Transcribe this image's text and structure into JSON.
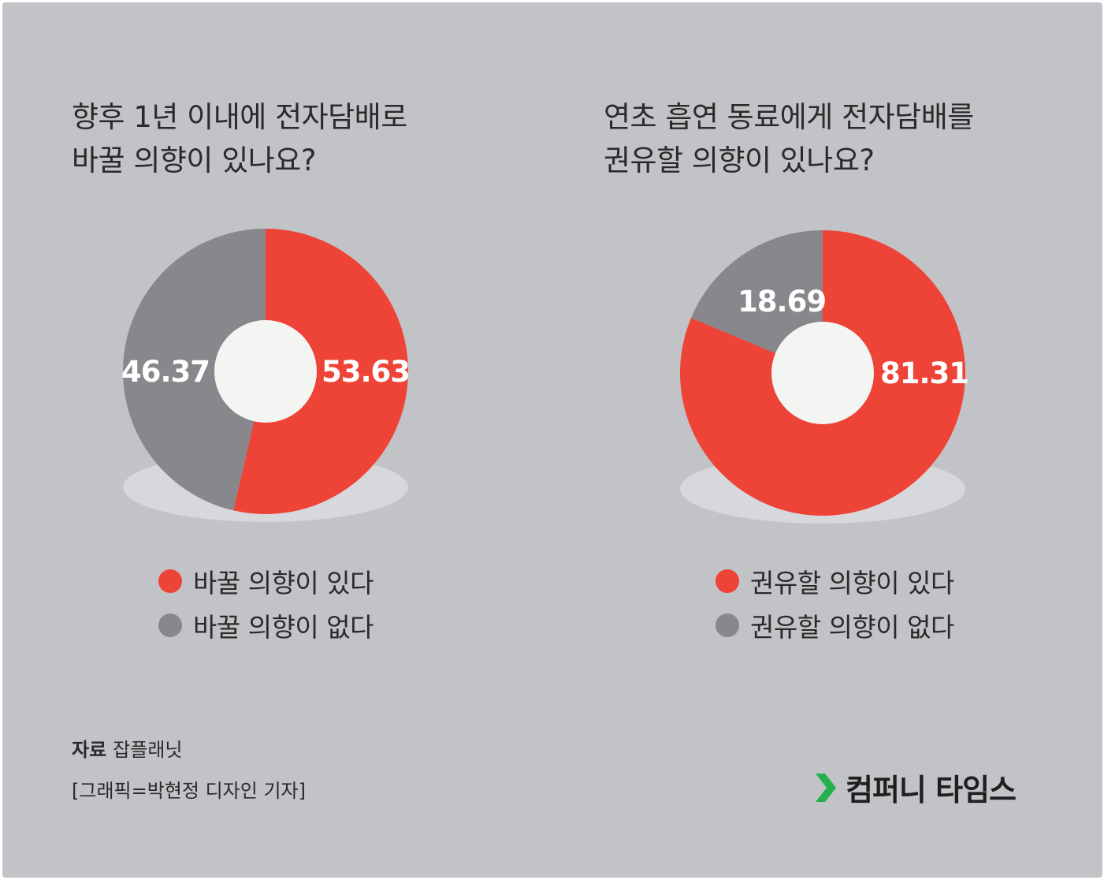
{
  "colors": {
    "background": "#c2c3c7",
    "positive": "#ee4337",
    "negative": "#87878c",
    "hole": "#f3f5f3",
    "shadow": "#d7d8db",
    "brand_accent": "#22b14c"
  },
  "chart_data": [
    {
      "type": "pie",
      "title": "향후 1년 이내에 전자담배로 바꿀 의향이 있나요?",
      "title_lines": [
        "향후 1년 이내에 전자담배로",
        "바꿀 의향이 있나요?"
      ],
      "series": [
        {
          "name": "바꿀 의향이 있다",
          "value": 53.63,
          "label": "53.63",
          "color": "#ee4337"
        },
        {
          "name": "바꿀 의향이 없다",
          "value": 46.37,
          "label": "46.37",
          "color": "#87878c"
        }
      ],
      "legend": "bottom"
    },
    {
      "type": "pie",
      "title": "연초 흡연 동료에게 전자담배를 권유할 의향이 있나요?",
      "title_lines": [
        "연초 흡연 동료에게 전자담배를",
        "권유할 의향이 있나요?"
      ],
      "series": [
        {
          "name": "권유할 의향이 있다",
          "value": 81.31,
          "label": "81.31",
          "color": "#ee4337"
        },
        {
          "name": "권유할 의향이 없다",
          "value": 18.69,
          "label": "18.69",
          "color": "#87878c"
        }
      ],
      "legend": "bottom"
    }
  ],
  "footer": {
    "source_label": "자료",
    "source_value": "잡플래닛",
    "credit": "[그래픽=박현정 디자인 기자]",
    "brand_name": "컴퍼니 타임스",
    "brand_icon": "chevron-right-icon"
  }
}
